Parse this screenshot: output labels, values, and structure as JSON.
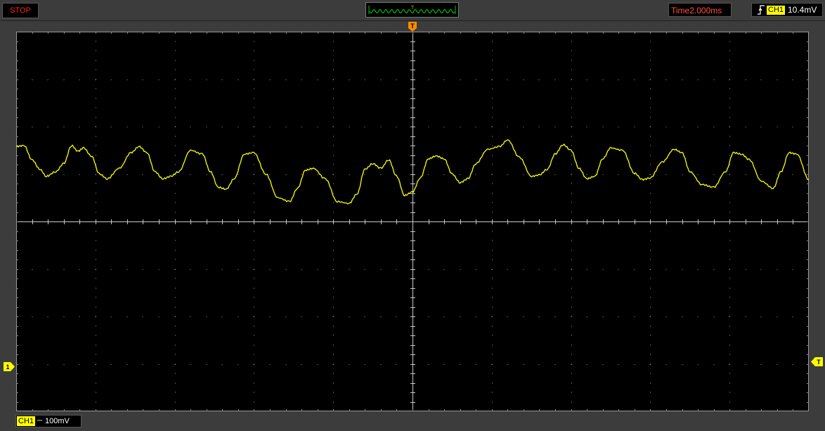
{
  "status": {
    "label": "STOP",
    "color": "#ff2020"
  },
  "timebase": {
    "label": "Time2.000ms"
  },
  "trigger": {
    "edge_icon": "rising-edge-icon",
    "channel": "CH1",
    "level": "10.4mV",
    "position_marker": "T",
    "level_marker": "T"
  },
  "overview": {
    "marker": "T"
  },
  "channel1": {
    "label": "CH1",
    "coupling_icon": "dc-coupling-icon",
    "coupling_symbol": "⎓",
    "scale": "100mV",
    "ground_marker": "1",
    "color": "#ffff00"
  },
  "grid": {
    "divisions_x": 10,
    "divisions_y": 8,
    "color": "#888888"
  },
  "chart_data": {
    "type": "line",
    "title": "",
    "xlabel": "",
    "ylabel": "",
    "x_unit_per_div": "2.000ms",
    "y_unit_per_div": "100mV",
    "xlim_div": [
      0,
      10
    ],
    "ylim_div": [
      -4,
      4
    ],
    "series": [
      {
        "color": "#ffff00",
        "x_div": [
          0.0,
          0.1,
          0.2,
          0.3,
          0.38,
          0.5,
          0.6,
          0.7,
          0.78,
          0.85,
          0.95,
          1.05,
          1.15,
          1.3,
          1.45,
          1.55,
          1.65,
          1.75,
          1.85,
          1.95,
          2.05,
          2.2,
          2.35,
          2.45,
          2.55,
          2.65,
          2.75,
          2.88,
          3.0,
          3.15,
          3.3,
          3.45,
          3.55,
          3.65,
          3.75,
          3.9,
          4.05,
          4.2,
          4.3,
          4.4,
          4.5,
          4.6,
          4.7,
          4.8,
          4.9,
          5.0,
          5.1,
          5.2,
          5.3,
          5.4,
          5.5,
          5.6,
          5.7,
          5.8,
          5.95,
          6.1,
          6.2,
          6.35,
          6.5,
          6.6,
          6.7,
          6.8,
          6.9,
          7.0,
          7.1,
          7.2,
          7.3,
          7.4,
          7.5,
          7.65,
          7.8,
          7.9,
          8.0,
          8.15,
          8.3,
          8.4,
          8.5,
          8.65,
          8.8,
          8.95,
          9.05,
          9.15,
          9.25,
          9.4,
          9.55,
          9.65,
          9.75,
          9.85,
          10.0
        ],
        "y_div": [
          1.58,
          1.6,
          1.3,
          1.1,
          0.95,
          1.05,
          1.22,
          1.6,
          1.48,
          1.55,
          1.38,
          1.0,
          0.9,
          1.12,
          1.45,
          1.58,
          1.45,
          1.05,
          0.9,
          0.95,
          1.05,
          1.5,
          1.42,
          1.05,
          0.72,
          0.68,
          0.9,
          1.42,
          1.45,
          1.0,
          0.5,
          0.42,
          0.7,
          1.08,
          1.12,
          0.9,
          0.42,
          0.38,
          0.58,
          1.1,
          1.22,
          1.12,
          1.3,
          0.95,
          0.55,
          0.62,
          0.92,
          1.32,
          1.38,
          1.32,
          1.0,
          0.82,
          0.9,
          1.22,
          1.52,
          1.58,
          1.72,
          1.35,
          0.95,
          0.98,
          1.1,
          1.42,
          1.62,
          1.5,
          1.12,
          0.9,
          0.95,
          1.32,
          1.55,
          1.5,
          1.02,
          0.88,
          0.92,
          1.25,
          1.52,
          1.45,
          1.05,
          0.78,
          0.72,
          1.05,
          1.45,
          1.42,
          1.3,
          0.85,
          0.7,
          1.05,
          1.45,
          1.42,
          0.88
        ]
      }
    ]
  }
}
